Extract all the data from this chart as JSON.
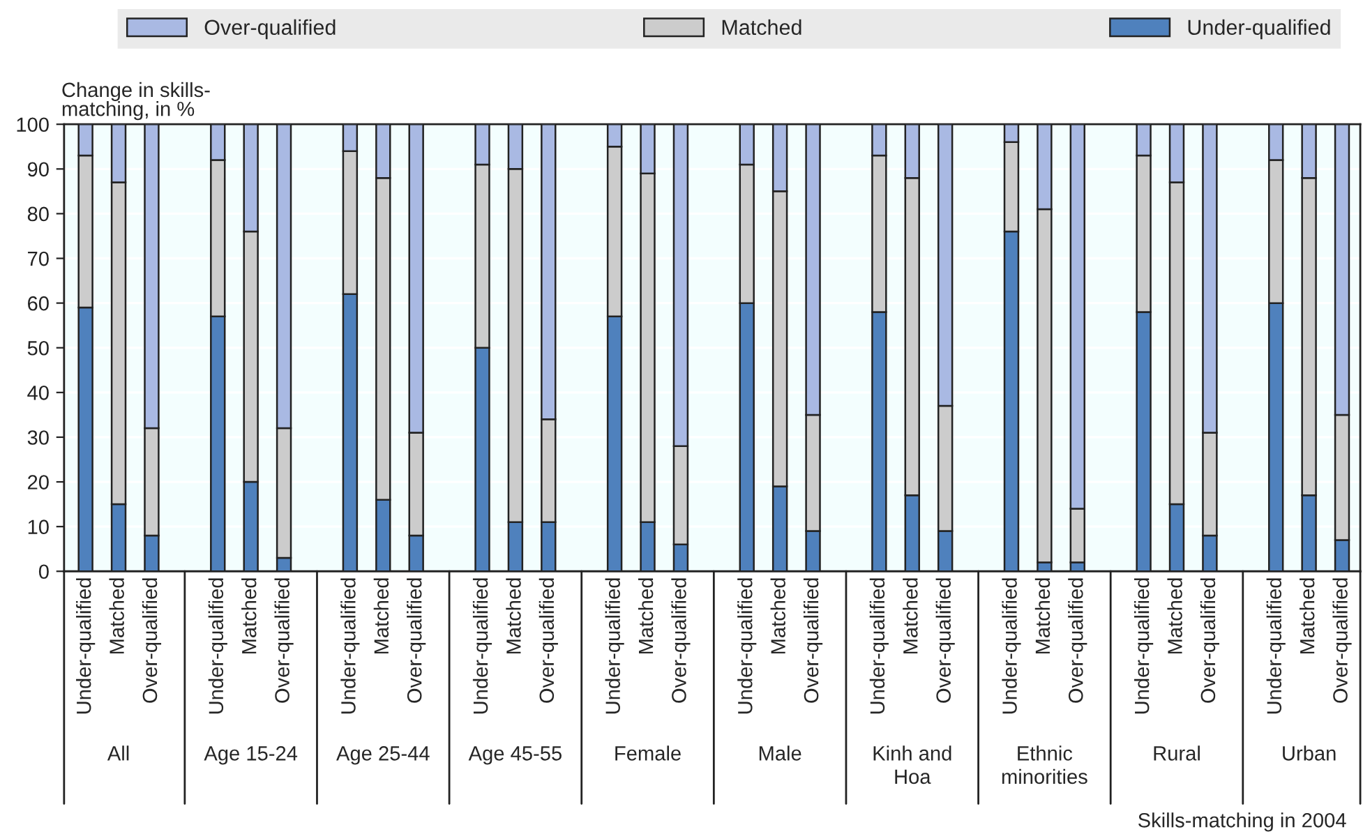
{
  "chart_data": {
    "type": "bar",
    "stacked": true,
    "ylabel": "Change in skills-matching, in %",
    "xlabel": "Skills-matching in 2004",
    "categories": [
      "Under-qualified",
      "Matched",
      "Over-qualified",
      null,
      "Under-qualified",
      "Matched",
      "Over-qualified",
      null,
      "Under-qualified",
      "Matched",
      "Over-qualified",
      null,
      "Under-qualified",
      "Matched",
      "Over-qualified",
      null,
      "Under-qualified",
      "Matched",
      "Over-qualified",
      null,
      "Under-qualified",
      "Matched",
      "Over-qualified",
      null,
      "Under-qualified",
      "Matched",
      "Over-qualified",
      null,
      "Under-qualified",
      "Matched",
      "Over-qualified",
      null,
      "Under-qualified",
      "Matched",
      "Over-qualified",
      null,
      "Under-qualified",
      "Matched",
      "Over-qualified"
    ],
    "annotations": [
      "All",
      "Age 15-24",
      "Age 25-44",
      "Age 45-55",
      "Female",
      "Male",
      "Kinh and Hoa",
      "Ethnic minorities",
      "Rural",
      "Urban"
    ],
    "series": [
      {
        "name": "Under-qualified",
        "color": "#4f81bd",
        "values": [
          59,
          15,
          8,
          null,
          57,
          20,
          3,
          null,
          62,
          16,
          8,
          null,
          50,
          11,
          11,
          null,
          57,
          11,
          6,
          null,
          60,
          19,
          9,
          null,
          58,
          17,
          9,
          null,
          76,
          2,
          2,
          null,
          58,
          15,
          8,
          null,
          60,
          17,
          7
        ]
      },
      {
        "name": "Matched",
        "color": "#cccccc",
        "values": [
          34,
          72,
          24,
          null,
          35,
          56,
          29,
          null,
          32,
          72,
          23,
          null,
          41,
          79,
          23,
          null,
          38,
          78,
          22,
          null,
          31,
          66,
          26,
          null,
          35,
          71,
          28,
          null,
          20,
          79,
          12,
          null,
          35,
          72,
          23,
          null,
          32,
          71,
          28
        ]
      },
      {
        "name": "Over-qualified",
        "color": "#a9b9e3",
        "values": [
          7,
          13,
          68,
          null,
          8,
          24,
          68,
          null,
          6,
          12,
          69,
          null,
          9,
          10,
          66,
          null,
          5,
          11,
          72,
          null,
          9,
          15,
          65,
          null,
          7,
          12,
          63,
          null,
          4,
          19,
          86,
          null,
          7,
          13,
          69,
          null,
          8,
          12,
          65
        ]
      }
    ],
    "ylim": [
      0,
      100
    ],
    "yticks": [
      0,
      10,
      20,
      30,
      40,
      50,
      60,
      70,
      80,
      90,
      100
    ],
    "grid": "y",
    "legend": "top"
  }
}
